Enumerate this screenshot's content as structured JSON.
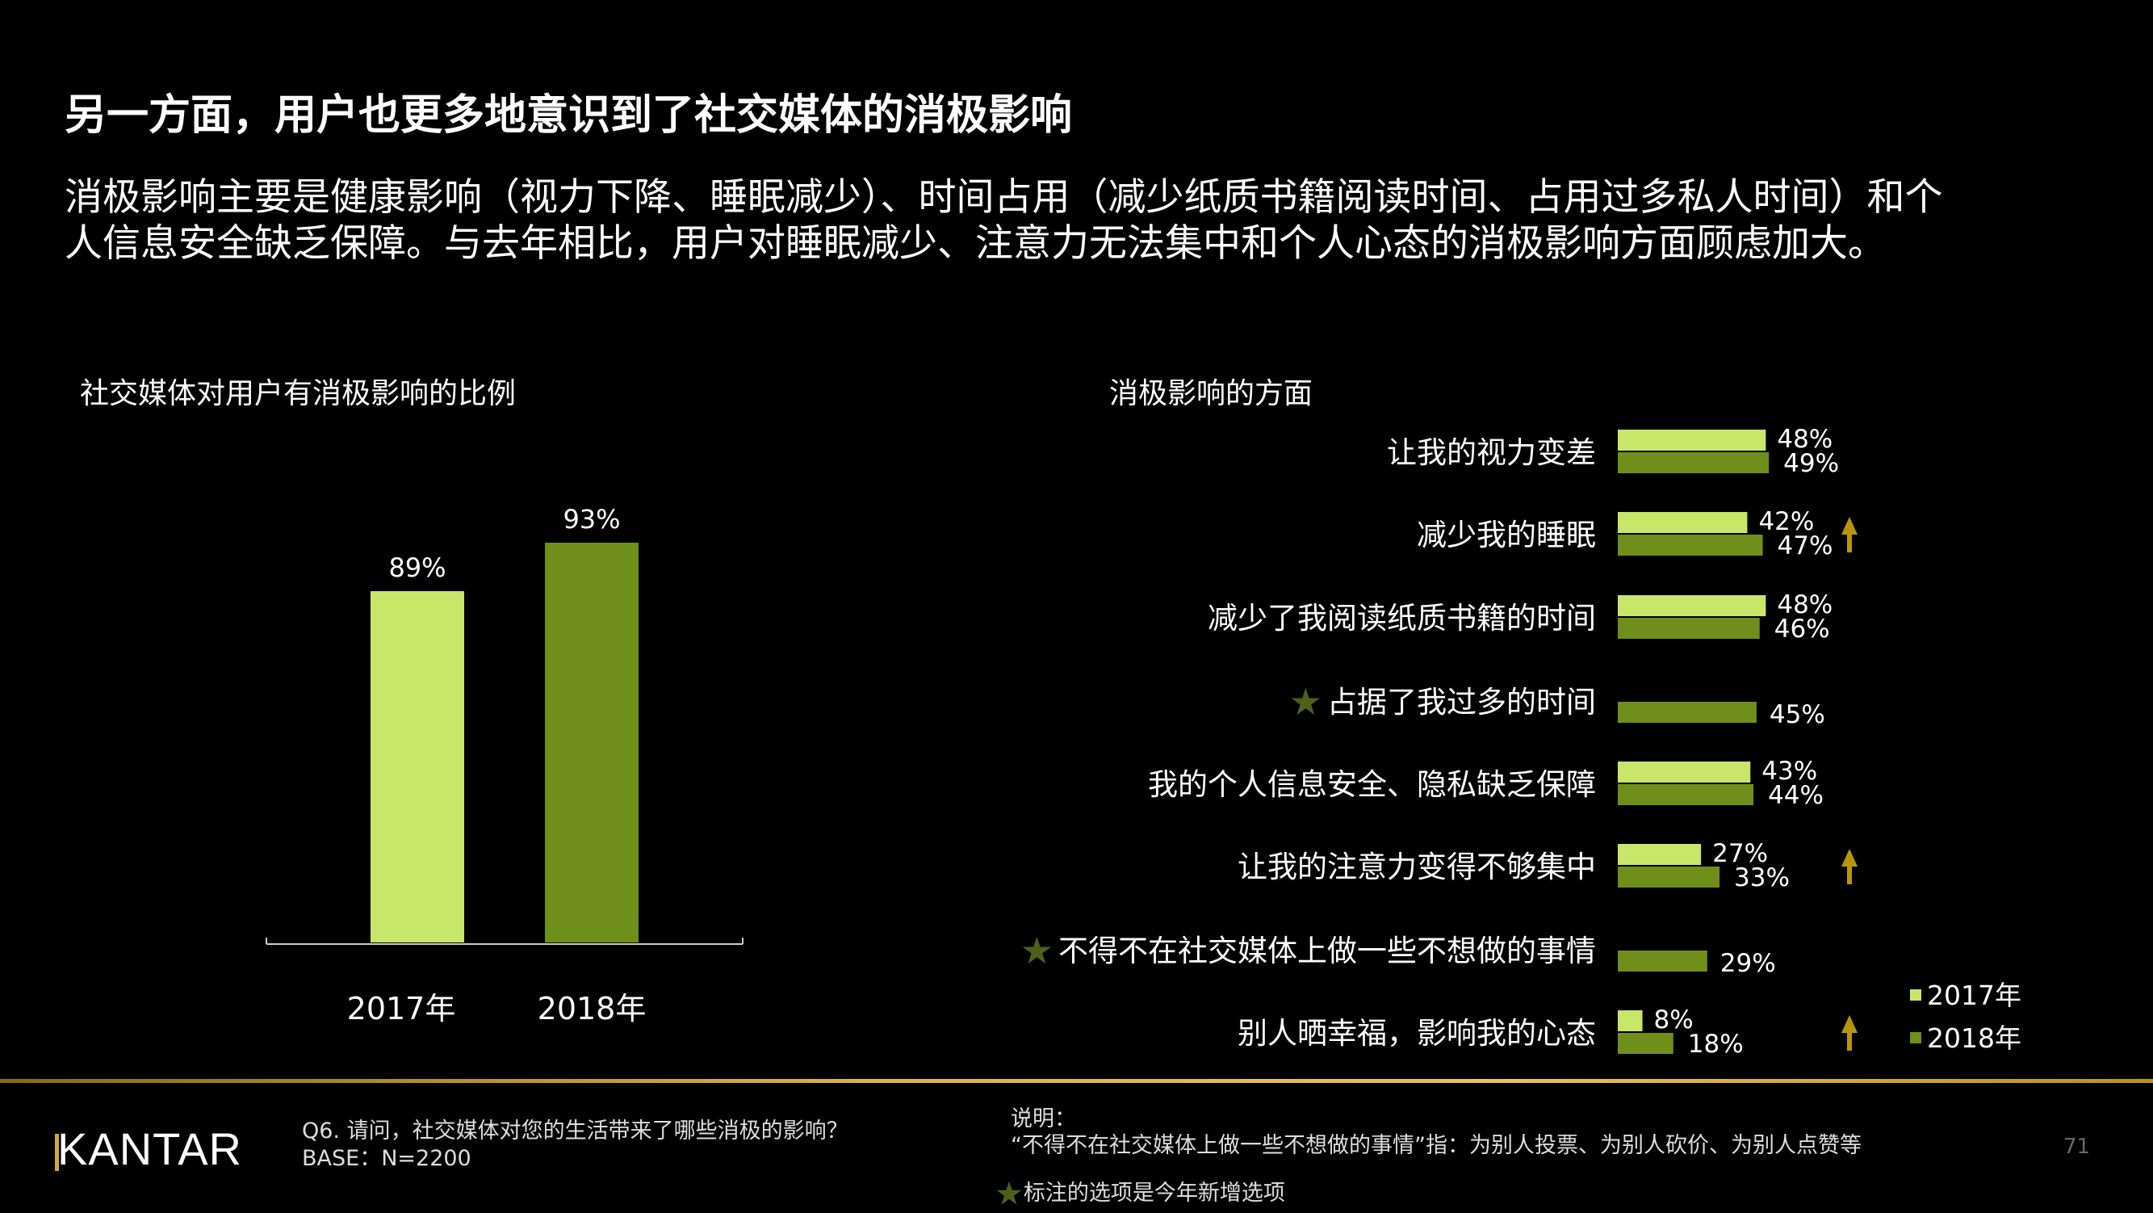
{
  "title": "另一方面，用户也更多地意识到了社交媒体的消极影响",
  "subtitle_lines": [
    "消极影响主要是健康影响（视力下降、睡眠减少）、时间占用（减少纸质书籍阅读时间、占用过多私人时间）和个",
    "人信息安全缺乏保障。与去年相比，用户对睡眠减少、注意力无法集中和个人心态的消极影响方面顾虑加大。"
  ],
  "colors": {
    "2017": "#c8e66a",
    "2018": "#6f8f1a",
    "arrow": "#b8960c",
    "star": "#4f6019",
    "gold_line": "#d9b24a"
  },
  "chart_data": [
    {
      "type": "bar",
      "title": "社交媒体对用户有消极影响的比例",
      "categories": [
        "2017年",
        "2018年"
      ],
      "values": [
        89,
        93
      ],
      "labels": [
        "89%",
        "93%"
      ],
      "grid": false
    },
    {
      "type": "bar",
      "orientation": "horizontal",
      "title": "消极影响的方面",
      "legend": {
        "position": "bottom-right",
        "entries": [
          "2017年",
          "2018年"
        ]
      },
      "categories": [
        "让我的视力变差",
        "减少我的睡眠",
        "减少了我阅读纸质书籍的时间",
        "占据了我过多的时间",
        "我的个人信息安全、隐私缺乏保障",
        "让我的注意力变得不够集中",
        "不得不在社交媒体上做一些不想做的事情",
        "别人晒幸福，影响我的心态"
      ],
      "series": [
        {
          "name": "2017年",
          "values": [
            48,
            42,
            48,
            null,
            43,
            27,
            null,
            8
          ]
        },
        {
          "name": "2018年",
          "values": [
            49,
            47,
            46,
            45,
            44,
            33,
            29,
            18
          ]
        }
      ],
      "new_option": [
        false,
        false,
        false,
        true,
        false,
        false,
        true,
        false
      ],
      "increase_arrow": [
        false,
        true,
        false,
        false,
        false,
        true,
        false,
        true
      ],
      "star_icon": "star-icon",
      "arrow_icon": "arrow-up-icon"
    }
  ],
  "footer": {
    "logo": "KANTAR",
    "question": "Q6. 请问，社交媒体对您的生活带来了哪些消极的影响？",
    "base": "BASE：N=2200",
    "note_title": "说明：",
    "note_text": "“不得不在社交媒体上做一些不想做的事情”指：为别人投票、为别人砍价、为别人点赞等",
    "star_note": "标注的选项是今年新增选项",
    "page_number": "71"
  }
}
